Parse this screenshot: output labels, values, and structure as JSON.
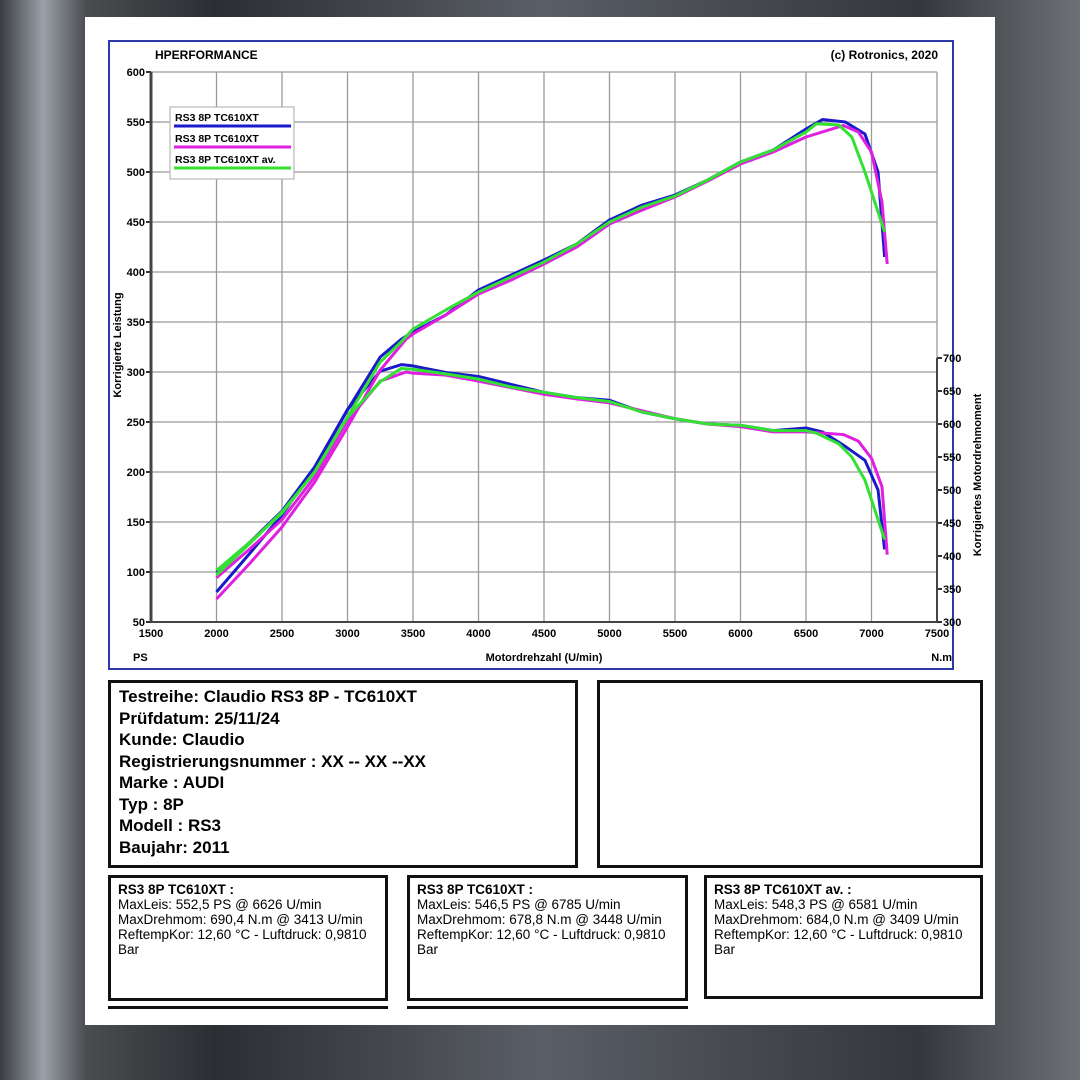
{
  "header": {
    "brand": "HPERFORMANCE",
    "copyright": "(c) Rotronics, 2020"
  },
  "chart_data": {
    "type": "line",
    "xlabel": "Motordrehzahl (U/min)",
    "ylabel_left": "Korrigierte Leistung",
    "ylabel_right": "Korrigiertes Motordrehmoment",
    "unit_left": "PS",
    "unit_right": "N.m",
    "xlim": [
      1500,
      7500
    ],
    "ylim_left": [
      50,
      600
    ],
    "ylim_right": [
      300,
      700
    ],
    "x_ticks": [
      1500,
      2000,
      2500,
      3000,
      3500,
      4000,
      4500,
      5000,
      5500,
      6000,
      6500,
      7000,
      7500
    ],
    "y_left_ticks": [
      50,
      100,
      150,
      200,
      250,
      300,
      350,
      400,
      450,
      500,
      550,
      600
    ],
    "y_right_ticks": [
      300,
      350,
      400,
      450,
      500,
      550,
      600,
      650,
      700
    ],
    "legend_position": "top-left",
    "grid": true,
    "series": [
      {
        "name": "RS3 8P TC610XT",
        "color": "#1a1acc",
        "rpm": [
          2000,
          2250,
          2500,
          2750,
          3000,
          3250,
          3413,
          3500,
          3750,
          4000,
          4250,
          4500,
          4750,
          5000,
          5250,
          5500,
          5750,
          6000,
          6250,
          6500,
          6626,
          6800,
          6950,
          7050,
          7100
        ],
        "power": [
          80,
          118,
          157,
          205,
          262,
          315,
          333,
          340,
          357,
          382,
          397,
          412,
          428,
          452,
          467,
          477,
          492,
          510,
          522,
          543,
          552.5,
          550,
          538,
          500,
          415
        ],
        "torque": [
          376,
          420,
          468,
          535,
          622,
          680,
          690,
          688,
          678,
          672,
          660,
          648,
          640,
          636,
          618,
          608,
          600,
          598,
          590,
          594,
          588,
          566,
          545,
          500,
          410
        ]
      },
      {
        "name": "RS3 8P TC610XT",
        "color": "#e020e0",
        "rpm": [
          2000,
          2250,
          2500,
          2750,
          3000,
          3250,
          3448,
          3500,
          3750,
          4000,
          4250,
          4500,
          4750,
          5000,
          5250,
          5500,
          5750,
          6000,
          6250,
          6500,
          6785,
          6900,
          7000,
          7080,
          7120
        ],
        "power": [
          73,
          108,
          145,
          190,
          245,
          302,
          333,
          338,
          357,
          378,
          392,
          408,
          425,
          448,
          462,
          475,
          491,
          508,
          520,
          535,
          546.5,
          540,
          520,
          470,
          408
        ],
        "torque": [
          367,
          410,
          455,
          520,
          605,
          665,
          678.8,
          677,
          674,
          665,
          655,
          645,
          638,
          632,
          620,
          608,
          600,
          596,
          588,
          588,
          584,
          574,
          548,
          505,
          402
        ]
      },
      {
        "name": "RS3 8P TC610XT av.",
        "color": "#33e033",
        "rpm": [
          2000,
          2250,
          2500,
          2750,
          3000,
          3250,
          3409,
          3500,
          3750,
          4000,
          4250,
          4500,
          4750,
          5000,
          5250,
          5500,
          5750,
          6000,
          6250,
          6500,
          6581,
          6750,
          6850,
          6950,
          7100
        ],
        "power": [
          97,
          128,
          160,
          200,
          255,
          310,
          330,
          343,
          362,
          380,
          395,
          410,
          428,
          450,
          465,
          476,
          492,
          510,
          522,
          540,
          548.3,
          547,
          535,
          500,
          440
        ],
        "torque": [
          378,
          420,
          465,
          528,
          610,
          664,
          684,
          683,
          676,
          668,
          656,
          648,
          640,
          634,
          618,
          608,
          600,
          598,
          590,
          590,
          586,
          570,
          550,
          515,
          425
        ]
      }
    ]
  },
  "info": {
    "lines": [
      "Testreihe: Claudio RS3 8P - TC610XT",
      "Prüfdatum: 25/11/24",
      "Kunde: Claudio",
      "Registrierungsnummer  : XX -- XX --XX",
      "Marke  : AUDI",
      "Typ  : 8P",
      "Modell  : RS3",
      "Baujahr: 2011"
    ]
  },
  "results": [
    {
      "title": "RS3 8P TC610XT :",
      "lines": [
        "MaxLeis: 552,5 PS @ 6626 U/min",
        "MaxDrehmom: 690,4 N.m @ 3413 U/min",
        "ReftempKor: 12,60 °C - Luftdruck: 0,9810 Bar"
      ]
    },
    {
      "title": "RS3 8P TC610XT :",
      "lines": [
        "MaxLeis: 546,5 PS @ 6785 U/min",
        "MaxDrehmom: 678,8 N.m @ 3448 U/min",
        "ReftempKor: 12,60 °C - Luftdruck: 0,9810 Bar"
      ]
    },
    {
      "title": "RS3 8P TC610XT av. :",
      "lines": [
        "MaxLeis: 548,3 PS @ 6581 U/min",
        "MaxDrehmom: 684,0 N.m @ 3409 U/min",
        "ReftempKor: 12,60 °C - Luftdruck: 0,9810 Bar"
      ]
    }
  ]
}
